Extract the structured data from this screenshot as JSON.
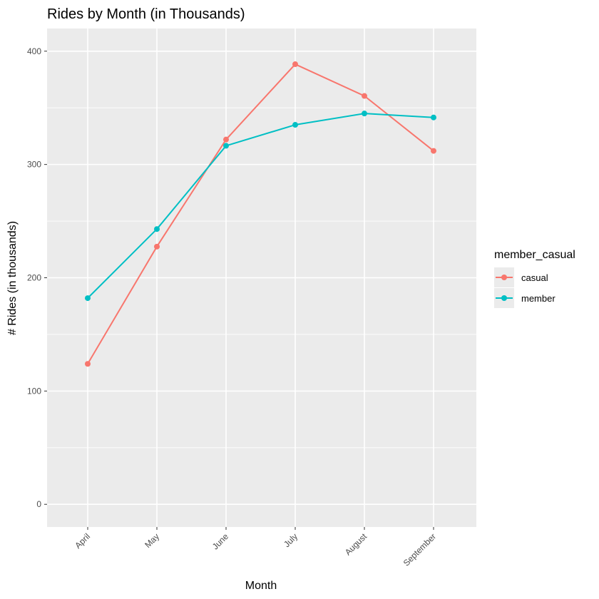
{
  "chart_data": {
    "type": "line",
    "title": "Rides by Month (in Thousands)",
    "xlabel": "Month",
    "ylabel": "# Rides (in thousands)",
    "categories": [
      "April",
      "May",
      "June",
      "July",
      "August",
      "September"
    ],
    "ylim": [
      -20,
      420
    ],
    "yticks": [
      0,
      100,
      200,
      300,
      400
    ],
    "grid": true,
    "legend": {
      "title": "member_casual",
      "placement": "right"
    },
    "series": [
      {
        "name": "casual",
        "color": "#F8766D",
        "values": [
          124,
          227.5,
          322,
          388.5,
          360.5,
          312
        ]
      },
      {
        "name": "member",
        "color": "#00BFC4",
        "values": [
          182,
          243,
          316.5,
          335,
          345,
          341.5
        ]
      }
    ]
  }
}
